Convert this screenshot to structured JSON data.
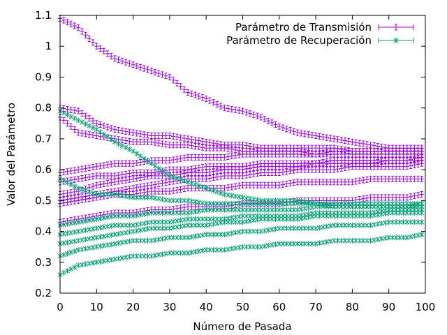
{
  "chart_data": {
    "type": "scatter",
    "title": "",
    "xlabel": "Número de Pasada",
    "ylabel": "Valor del Parámetro",
    "xlim": [
      0,
      100
    ],
    "ylim": [
      0.2,
      1.1
    ],
    "xticks": [
      0,
      10,
      20,
      30,
      40,
      50,
      60,
      70,
      80,
      90,
      100
    ],
    "yticks": [
      0.2,
      0.3,
      0.4,
      0.5,
      0.6,
      0.7,
      0.8,
      0.9,
      1.0,
      1.1
    ],
    "ytick_labels": [
      "0.2",
      "0.3",
      "0.4",
      "0.5",
      "0.6",
      "0.7",
      "0.8",
      "0.9",
      "1",
      "1.1"
    ],
    "grid": false,
    "legend_position": "top-right",
    "series": [
      {
        "name": "Parámetro de Transmisión",
        "marker": "plus-errorbar",
        "color": "#9400d3",
        "curves": [
          {
            "x": [
              0,
              5,
              10,
              15,
              20,
              25,
              30,
              35,
              40,
              45,
              50,
              55,
              60,
              65,
              70,
              75,
              80,
              85,
              90,
              95,
              99
            ],
            "y": [
              1.09,
              1.06,
              1.0,
              0.96,
              0.94,
              0.92,
              0.9,
              0.85,
              0.83,
              0.8,
              0.79,
              0.77,
              0.74,
              0.72,
              0.71,
              0.7,
              0.69,
              0.68,
              0.67,
              0.67,
              0.67
            ]
          },
          {
            "x": [
              0,
              5,
              10,
              15,
              20,
              25,
              30,
              35,
              40,
              45,
              50,
              55,
              60,
              65,
              70,
              75,
              80,
              85,
              90,
              95,
              99
            ],
            "y": [
              0.8,
              0.79,
              0.75,
              0.73,
              0.72,
              0.71,
              0.71,
              0.7,
              0.69,
              0.68,
              0.68,
              0.67,
              0.67,
              0.67,
              0.67,
              0.67,
              0.66,
              0.66,
              0.66,
              0.66,
              0.66
            ]
          },
          {
            "x": [
              0,
              5,
              10,
              15,
              20,
              25,
              30,
              35,
              40,
              45,
              50,
              55,
              60,
              65,
              70,
              75,
              80,
              85,
              90,
              95,
              99
            ],
            "y": [
              0.77,
              0.72,
              0.71,
              0.7,
              0.69,
              0.69,
              0.68,
              0.68,
              0.67,
              0.67,
              0.66,
              0.66,
              0.66,
              0.66,
              0.65,
              0.65,
              0.65,
              0.65,
              0.65,
              0.65,
              0.65
            ]
          },
          {
            "x": [
              0,
              5,
              10,
              15,
              20,
              25,
              30,
              35,
              40,
              45,
              50,
              55,
              60,
              65,
              70,
              75,
              80,
              85,
              90,
              95,
              99
            ],
            "y": [
              0.59,
              0.6,
              0.61,
              0.62,
              0.62,
              0.63,
              0.63,
              0.64,
              0.64,
              0.64,
              0.65,
              0.65,
              0.65,
              0.65,
              0.65,
              0.66,
              0.66,
              0.66,
              0.66,
              0.66,
              0.66
            ]
          },
          {
            "x": [
              0,
              5,
              10,
              15,
              20,
              25,
              30,
              35,
              40,
              45,
              50,
              55,
              60,
              65,
              70,
              75,
              80,
              85,
              90,
              95,
              99
            ],
            "y": [
              0.56,
              0.57,
              0.58,
              0.58,
              0.59,
              0.59,
              0.6,
              0.6,
              0.61,
              0.61,
              0.61,
              0.62,
              0.62,
              0.62,
              0.62,
              0.63,
              0.63,
              0.63,
              0.63,
              0.63,
              0.64
            ]
          },
          {
            "x": [
              0,
              5,
              10,
              15,
              20,
              25,
              30,
              35,
              40,
              45,
              50,
              55,
              60,
              65,
              70,
              75,
              80,
              85,
              90,
              95,
              99
            ],
            "y": [
              0.52,
              0.53,
              0.55,
              0.56,
              0.57,
              0.58,
              0.58,
              0.59,
              0.59,
              0.6,
              0.6,
              0.61,
              0.61,
              0.61,
              0.62,
              0.62,
              0.62,
              0.62,
              0.63,
              0.63,
              0.63
            ]
          },
          {
            "x": [
              0,
              5,
              10,
              15,
              20,
              25,
              30,
              35,
              40,
              45,
              50,
              55,
              60,
              65,
              70,
              75,
              80,
              85,
              90,
              95,
              99
            ],
            "y": [
              0.5,
              0.51,
              0.52,
              0.53,
              0.54,
              0.55,
              0.56,
              0.57,
              0.57,
              0.58,
              0.58,
              0.59,
              0.59,
              0.6,
              0.6,
              0.6,
              0.61,
              0.61,
              0.61,
              0.61,
              0.62
            ]
          },
          {
            "x": [
              0,
              5,
              10,
              15,
              20,
              25,
              30,
              35,
              40,
              45,
              50,
              55,
              60,
              65,
              70,
              75,
              80,
              85,
              90,
              95,
              99
            ],
            "y": [
              0.49,
              0.5,
              0.51,
              0.52,
              0.52,
              0.53,
              0.53,
              0.54,
              0.54,
              0.54,
              0.55,
              0.55,
              0.55,
              0.56,
              0.56,
              0.56,
              0.56,
              0.57,
              0.57,
              0.57,
              0.57
            ]
          },
          {
            "x": [
              0,
              5,
              10,
              15,
              20,
              25,
              30,
              35,
              40,
              45,
              50,
              55,
              60,
              65,
              70,
              75,
              80,
              85,
              90,
              95,
              99
            ],
            "y": [
              0.43,
              0.44,
              0.45,
              0.46,
              0.46,
              0.47,
              0.47,
              0.48,
              0.48,
              0.48,
              0.49,
              0.49,
              0.49,
              0.5,
              0.5,
              0.5,
              0.5,
              0.51,
              0.51,
              0.51,
              0.52
            ]
          }
        ]
      },
      {
        "name": "Parámetro de Recuperación",
        "marker": "x-errorbar",
        "color": "#009e73",
        "curves": [
          {
            "x": [
              0,
              5,
              10,
              15,
              20,
              25,
              30,
              35,
              40,
              45,
              50,
              55,
              60,
              65,
              70,
              75,
              80,
              85,
              90,
              95,
              99
            ],
            "y": [
              0.79,
              0.76,
              0.73,
              0.69,
              0.66,
              0.62,
              0.58,
              0.56,
              0.54,
              0.52,
              0.51,
              0.5,
              0.5,
              0.5,
              0.49,
              0.49,
              0.49,
              0.49,
              0.49,
              0.49,
              0.49
            ]
          },
          {
            "x": [
              0,
              5,
              10,
              15,
              20,
              25,
              30,
              35,
              40,
              45,
              50,
              55,
              60,
              65,
              70,
              75,
              80,
              85,
              90,
              95,
              99
            ],
            "y": [
              0.57,
              0.54,
              0.52,
              0.52,
              0.51,
              0.51,
              0.5,
              0.5,
              0.49,
              0.49,
              0.49,
              0.49,
              0.49,
              0.49,
              0.49,
              0.48,
              0.48,
              0.48,
              0.48,
              0.48,
              0.48
            ]
          },
          {
            "x": [
              0,
              5,
              10,
              15,
              20,
              25,
              30,
              35,
              40,
              45,
              50,
              55,
              60,
              65,
              70,
              75,
              80,
              85,
              90,
              95,
              99
            ],
            "y": [
              0.42,
              0.43,
              0.44,
              0.45,
              0.45,
              0.46,
              0.46,
              0.46,
              0.47,
              0.47,
              0.47,
              0.47,
              0.47,
              0.47,
              0.48,
              0.48,
              0.48,
              0.48,
              0.48,
              0.48,
              0.49
            ]
          },
          {
            "x": [
              0,
              5,
              10,
              15,
              20,
              25,
              30,
              35,
              40,
              45,
              50,
              55,
              60,
              65,
              70,
              75,
              80,
              85,
              90,
              95,
              99
            ],
            "y": [
              0.39,
              0.4,
              0.41,
              0.42,
              0.42,
              0.43,
              0.43,
              0.44,
              0.44,
              0.44,
              0.45,
              0.45,
              0.45,
              0.45,
              0.46,
              0.46,
              0.46,
              0.46,
              0.47,
              0.47,
              0.47
            ]
          },
          {
            "x": [
              0,
              5,
              10,
              15,
              20,
              25,
              30,
              35,
              40,
              45,
              50,
              55,
              60,
              65,
              70,
              75,
              80,
              85,
              90,
              95,
              99
            ],
            "y": [
              0.36,
              0.37,
              0.38,
              0.39,
              0.4,
              0.41,
              0.41,
              0.42,
              0.42,
              0.43,
              0.43,
              0.44,
              0.44,
              0.44,
              0.45,
              0.45,
              0.45,
              0.45,
              0.46,
              0.46,
              0.46
            ]
          },
          {
            "x": [
              0,
              5,
              10,
              15,
              20,
              25,
              30,
              35,
              40,
              45,
              50,
              55,
              60,
              65,
              70,
              75,
              80,
              85,
              90,
              95,
              99
            ],
            "y": [
              0.32,
              0.34,
              0.35,
              0.36,
              0.37,
              0.37,
              0.38,
              0.38,
              0.39,
              0.39,
              0.4,
              0.4,
              0.41,
              0.41,
              0.41,
              0.42,
              0.42,
              0.42,
              0.43,
              0.43,
              0.43
            ]
          },
          {
            "x": [
              0,
              5,
              10,
              15,
              20,
              25,
              30,
              35,
              40,
              45,
              50,
              55,
              60,
              65,
              70,
              75,
              80,
              85,
              90,
              95,
              99
            ],
            "y": [
              0.26,
              0.29,
              0.3,
              0.31,
              0.32,
              0.32,
              0.33,
              0.33,
              0.34,
              0.34,
              0.35,
              0.35,
              0.36,
              0.36,
              0.36,
              0.37,
              0.37,
              0.37,
              0.38,
              0.38,
              0.39
            ]
          }
        ]
      }
    ]
  }
}
